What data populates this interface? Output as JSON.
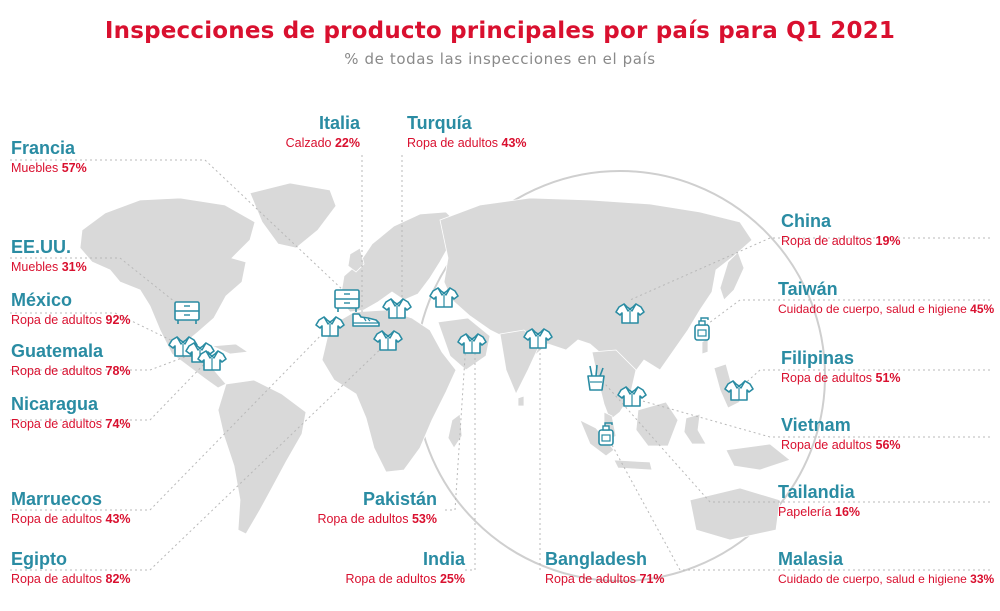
{
  "title": "Inspecciones de producto principales por país para Q1 2021",
  "subtitle": "% de todas las inspecciones en el país",
  "colors": {
    "title": "#d9102f",
    "country": "#2a8ca3",
    "stat": "#d9102f",
    "land": "#d9d9d9",
    "icon": "#2a8ca3"
  },
  "countries": {
    "francia": {
      "name": "Francia",
      "category": "Muebles",
      "value": "57%",
      "icon": "furniture-icon"
    },
    "eeuu": {
      "name": "EE.UU.",
      "category": "Muebles",
      "value": "31%",
      "icon": "furniture-icon"
    },
    "mexico": {
      "name": "México",
      "category": "Ropa de adultos",
      "value": "92%",
      "icon": "shirt-icon"
    },
    "guatemala": {
      "name": "Guatemala",
      "category": "Ropa de adultos",
      "value": "78%",
      "icon": "shirt-icon"
    },
    "nicaragua": {
      "name": "Nicaragua",
      "category": "Ropa de adultos",
      "value": "74%",
      "icon": "shirt-icon"
    },
    "marruecos": {
      "name": "Marruecos",
      "category": "Ropa de adultos",
      "value": "43%",
      "icon": "shirt-icon"
    },
    "egipto": {
      "name": "Egipto",
      "category": "Ropa de adultos",
      "value": "82%",
      "icon": "shirt-icon"
    },
    "italia": {
      "name": "Italia",
      "category": "Calzado",
      "value": "22%",
      "icon": "shoe-icon"
    },
    "turquia": {
      "name": "Turquía",
      "category": "Ropa de adultos",
      "value": "43%",
      "icon": "shirt-icon"
    },
    "pakistan": {
      "name": "Pakistán",
      "category": "Ropa de adultos",
      "value": "53%",
      "icon": "shirt-icon"
    },
    "india": {
      "name": "India",
      "category": "Ropa de adultos",
      "value": "25%",
      "icon": "shirt-icon"
    },
    "bangladesh": {
      "name": "Bangladesh",
      "category": "Ropa de adultos",
      "value": "71%",
      "icon": "shirt-icon"
    },
    "china": {
      "name": "China",
      "category": "Ropa de adultos",
      "value": "19%",
      "icon": "shirt-icon"
    },
    "taiwan": {
      "name": "Taiwán",
      "category": "Cuidado de cuerpo, salud e higiene",
      "value": "45%",
      "icon": "soap-bottle-icon"
    },
    "filipinas": {
      "name": "Filipinas",
      "category": "Ropa de adultos",
      "value": "51%",
      "icon": "shirt-icon"
    },
    "vietnam": {
      "name": "Vietnam",
      "category": "Ropa de adultos",
      "value": "56%",
      "icon": "shirt-icon"
    },
    "tailandia": {
      "name": "Tailandia",
      "category": "Papelería",
      "value": "16%",
      "icon": "stationery-icon"
    },
    "malasia": {
      "name": "Malasia",
      "category": "Cuidado de cuerpo, salud e higiene",
      "value": "33%",
      "icon": "soap-bottle-icon"
    }
  }
}
